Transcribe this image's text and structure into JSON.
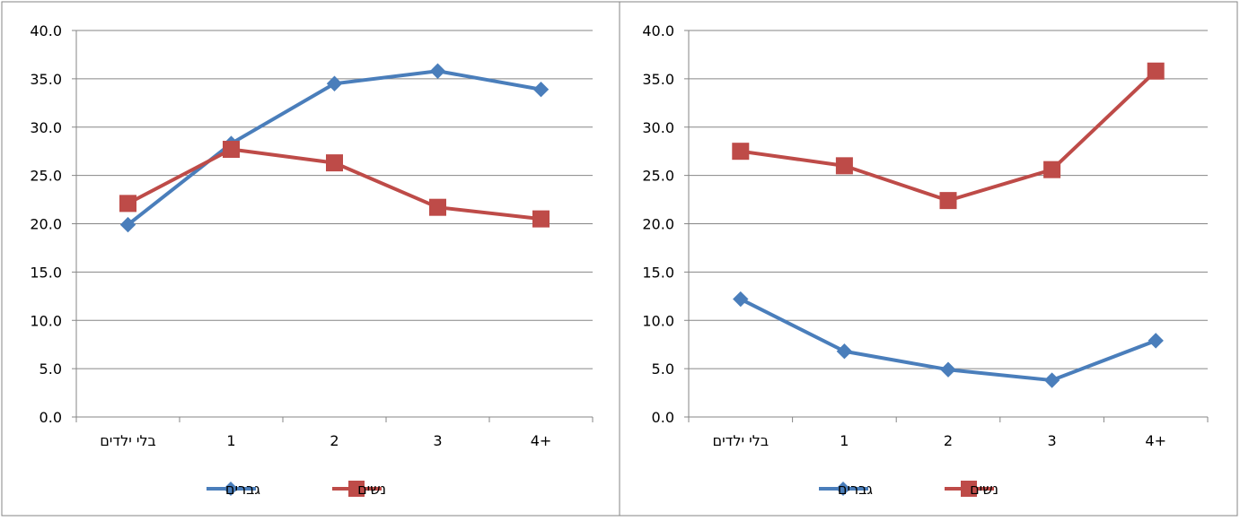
{
  "colors": {
    "men": "#4a7ebb",
    "women": "#be4b48",
    "grid": "#868686",
    "border": "#868686"
  },
  "chart_data": [
    {
      "type": "line",
      "categories": [
        "בלי ילדים",
        "1",
        "2",
        "3",
        "4+"
      ],
      "ylim": [
        0,
        40
      ],
      "yticks": [
        "0.0",
        "5.0",
        "10.0",
        "15.0",
        "20.0",
        "25.0",
        "30.0",
        "35.0",
        "40.0"
      ],
      "grid": true,
      "legend_position": "bottom",
      "series": [
        {
          "name": "גברים",
          "marker": "diamond",
          "color": "#4a7ebb",
          "values": [
            19.9,
            28.3,
            34.5,
            35.8,
            33.9
          ]
        },
        {
          "name": "נשים",
          "marker": "square",
          "color": "#be4b48",
          "values": [
            22.1,
            27.7,
            26.3,
            21.7,
            20.5
          ]
        }
      ]
    },
    {
      "type": "line",
      "categories": [
        "בלי ילדים",
        "1",
        "2",
        "3",
        "4+"
      ],
      "ylim": [
        0,
        40
      ],
      "yticks": [
        "0.0",
        "5.0",
        "10.0",
        "15.0",
        "20.0",
        "25.0",
        "30.0",
        "35.0",
        "40.0"
      ],
      "grid": true,
      "legend_position": "bottom",
      "series": [
        {
          "name": "גברים",
          "marker": "diamond",
          "color": "#4a7ebb",
          "values": [
            12.2,
            6.8,
            4.9,
            3.8,
            7.9
          ]
        },
        {
          "name": "נשים",
          "marker": "square",
          "color": "#be4b48",
          "values": [
            27.5,
            26.0,
            22.4,
            25.6,
            35.8
          ]
        }
      ]
    }
  ]
}
